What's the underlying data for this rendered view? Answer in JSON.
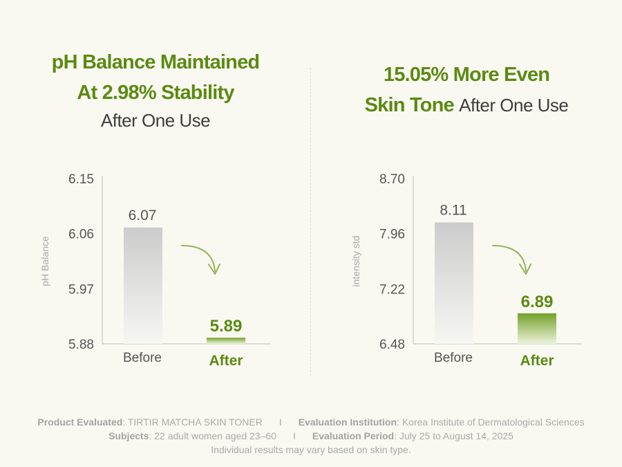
{
  "colors": {
    "accent": "#5b8a12",
    "axis": "#cfcfcf",
    "before_bar": "#cccccc",
    "after_bar": "#73a12a",
    "text": "#3e3e3e",
    "muted": "#a9a9a9"
  },
  "chart_data": [
    {
      "type": "bar",
      "title_line1": "pH Balance Maintained",
      "title_line2": "At 2.98% Stability",
      "subtitle": "After One Use",
      "ylabel": "pH Balance",
      "yticks": [
        "6.15",
        "6.06",
        "5.97",
        "5.88"
      ],
      "ylim": [
        5.88,
        6.15
      ],
      "categories": [
        "Before",
        "After"
      ],
      "values": [
        6.07,
        5.89
      ],
      "value_labels": [
        "6.07",
        "5.89"
      ]
    },
    {
      "type": "bar",
      "title_line1": "15.05% More Even",
      "title_line2": "Skin Tone",
      "subtitle": "After One Use",
      "ylabel": "intensity std",
      "yticks": [
        "8.70",
        "7.96",
        "7.22",
        "6.48"
      ],
      "ylim": [
        6.48,
        8.7
      ],
      "categories": [
        "Before",
        "After"
      ],
      "values": [
        8.11,
        6.89
      ],
      "value_labels": [
        "8.11",
        "6.89"
      ]
    }
  ],
  "footer": {
    "product_label": "Product Evaluated",
    "product_value": ": TIRTIR MATCHA SKIN TONER",
    "institution_label": "Evaluation Institution",
    "institution_value": ": Korea Institute of Dermatological Sciences",
    "subjects_label": "Subjects",
    "subjects_value": ": 22 adult women aged 23–60",
    "period_label": "Evaluation Period",
    "period_value": ": July 25 to August 14, 2025",
    "separator": "I",
    "disclaimer": "Individual results may vary based on skin type."
  }
}
